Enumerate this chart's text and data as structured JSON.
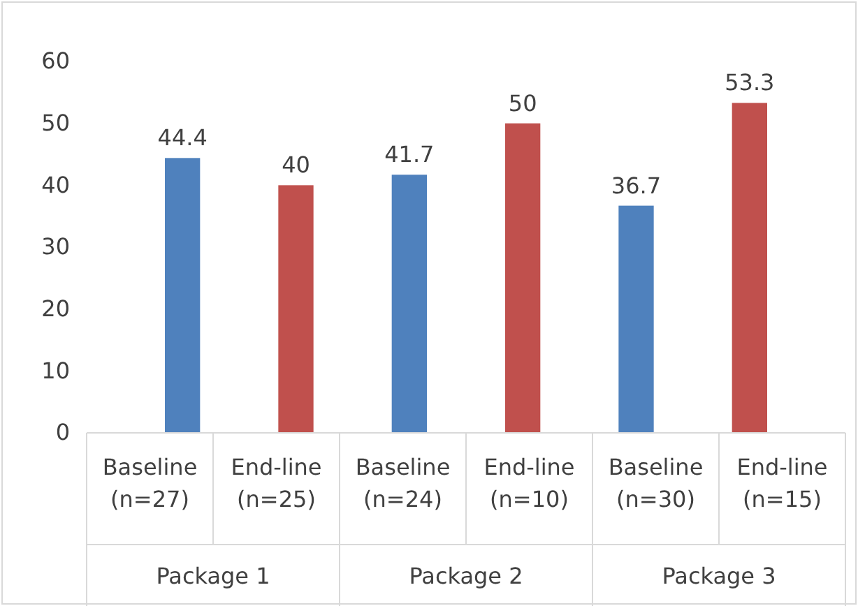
{
  "chart_data": {
    "type": "bar",
    "categories": [
      "Baseline (n=27)",
      "End-line (n=25)",
      "Baseline (n=24)",
      "End-line (n=10)",
      "Baseline (n=30)",
      "End-line (n=15)"
    ],
    "values": [
      44.4,
      40,
      41.7,
      50,
      36.7,
      53.3
    ],
    "colors": [
      "#4f81bd",
      "#c0504d",
      "#4f81bd",
      "#c0504d",
      "#4f81bd",
      "#c0504d"
    ],
    "ylim": [
      0,
      60
    ],
    "yticks": [
      0,
      10,
      20,
      30,
      40,
      50,
      60
    ],
    "data_labels": true,
    "annotations": [
      "Package 1",
      "Package 2",
      "Package 3"
    ]
  }
}
